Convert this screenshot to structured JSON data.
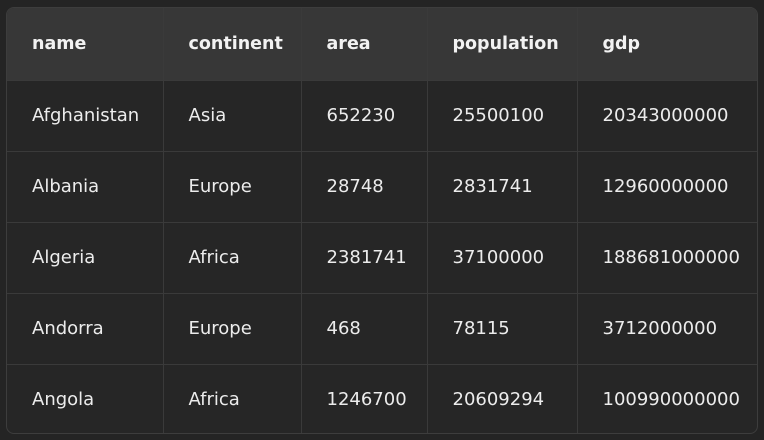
{
  "table": {
    "columns": [
      "name",
      "continent",
      "area",
      "population",
      "gdp"
    ],
    "rows": [
      [
        "Afghanistan",
        "Asia",
        "652230",
        "25500100",
        "20343000000"
      ],
      [
        "Albania",
        "Europe",
        "28748",
        "2831741",
        "12960000000"
      ],
      [
        "Algeria",
        "Africa",
        "2381741",
        "37100000",
        "188681000000"
      ],
      [
        "Andorra",
        "Europe",
        "468",
        "78115",
        "3712000000"
      ],
      [
        "Angola",
        "Africa",
        "1246700",
        "20609294",
        "100990000000"
      ]
    ]
  }
}
